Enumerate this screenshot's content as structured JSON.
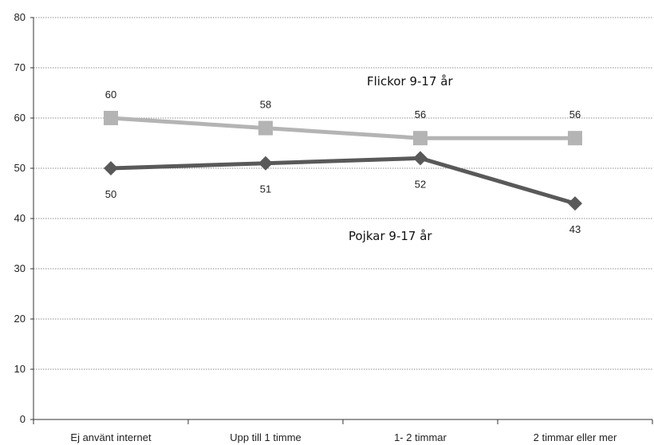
{
  "chart_data": {
    "type": "line",
    "categories": [
      "Ej använt internet",
      "Upp till 1 timme",
      "1- 2 timmar",
      "2 timmar eller mer"
    ],
    "ylim": [
      0,
      80
    ],
    "yticks": [
      0,
      10,
      20,
      30,
      40,
      50,
      60,
      70,
      80
    ],
    "grid": true,
    "legend": "none",
    "series": [
      {
        "name": "Flickor 9-17 år",
        "values": [
          60,
          58,
          56,
          56
        ],
        "labels": [
          "60",
          "58",
          "56",
          "56"
        ],
        "color": "#b4b4b4",
        "marker": "square"
      },
      {
        "name": "Pojkar 9-17 år",
        "values": [
          50,
          51,
          52,
          43
        ],
        "labels": [
          "50",
          "51",
          "52",
          "43"
        ],
        "color": "#595959",
        "marker": "diamond"
      }
    ]
  }
}
